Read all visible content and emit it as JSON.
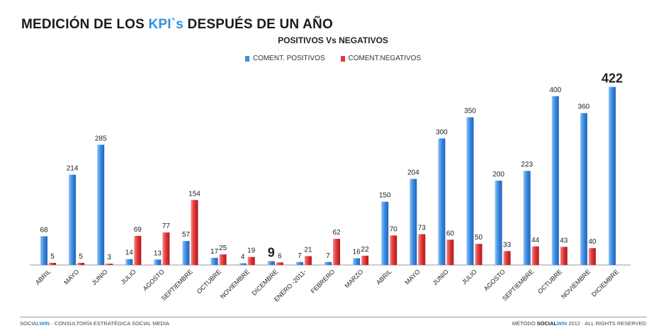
{
  "header": {
    "title_part1": "MEDICIÓN DE LOS ",
    "title_accent": "KPI`s",
    "title_part2": " DESPUÉS DE UN AÑO"
  },
  "colors": {
    "positive": "#3d8ee6",
    "negative": "#e23a3a",
    "accent": "#2f8fde"
  },
  "chart_data": {
    "type": "bar",
    "title": "POSITIVOS Vs NEGATIVOS",
    "legend_position": "top",
    "grid": false,
    "categories": [
      "ABRIL",
      "MAYO",
      "JUNIO",
      "JULIO",
      "AGOSTO",
      "SEPTIEMBRE",
      "OCTUBRE",
      "NOVIEMBRE",
      "DICEMBRE",
      "ENERO -2011-",
      "FEBRERO",
      "MARZO",
      "ABRIL",
      "MAYO",
      "JUNIO",
      "JULIO",
      "AGOSTO",
      "SEPTIEMBRE",
      "OCTUBRE",
      "NOVIEMBRE",
      "DICIEMBRE"
    ],
    "series": [
      {
        "name": "COMENT. POSITIVOS",
        "color": "#3d8ee6",
        "values": [
          68,
          214,
          285,
          14,
          13,
          57,
          17,
          4,
          9,
          7,
          7,
          16,
          150,
          204,
          300,
          350,
          200,
          223,
          400,
          360,
          422
        ]
      },
      {
        "name": "COMENT.NEGATIVOS",
        "color": "#e23a3a",
        "values": [
          5,
          5,
          3,
          69,
          77,
          154,
          25,
          19,
          6,
          21,
          62,
          22,
          70,
          73,
          60,
          50,
          33,
          44,
          43,
          40,
          null
        ]
      }
    ],
    "ylim": [
      0,
      440
    ],
    "emphasized_labels": [
      {
        "series": 0,
        "index": 8
      },
      {
        "series": 0,
        "index": 20
      }
    ]
  },
  "footer": {
    "left_prefix": "SOCIAL",
    "left_accent": "WIN",
    "left_rest": " · CONSULTORÍA ESTRATÉGICA SOCIAL MEDIA",
    "right_prefix": "MÉTODO ",
    "right_brand_dark": "SOCIAL",
    "right_brand_accent": "WIN",
    "right_rest": " 2012 · ALL RIGHTS RESERVED"
  }
}
